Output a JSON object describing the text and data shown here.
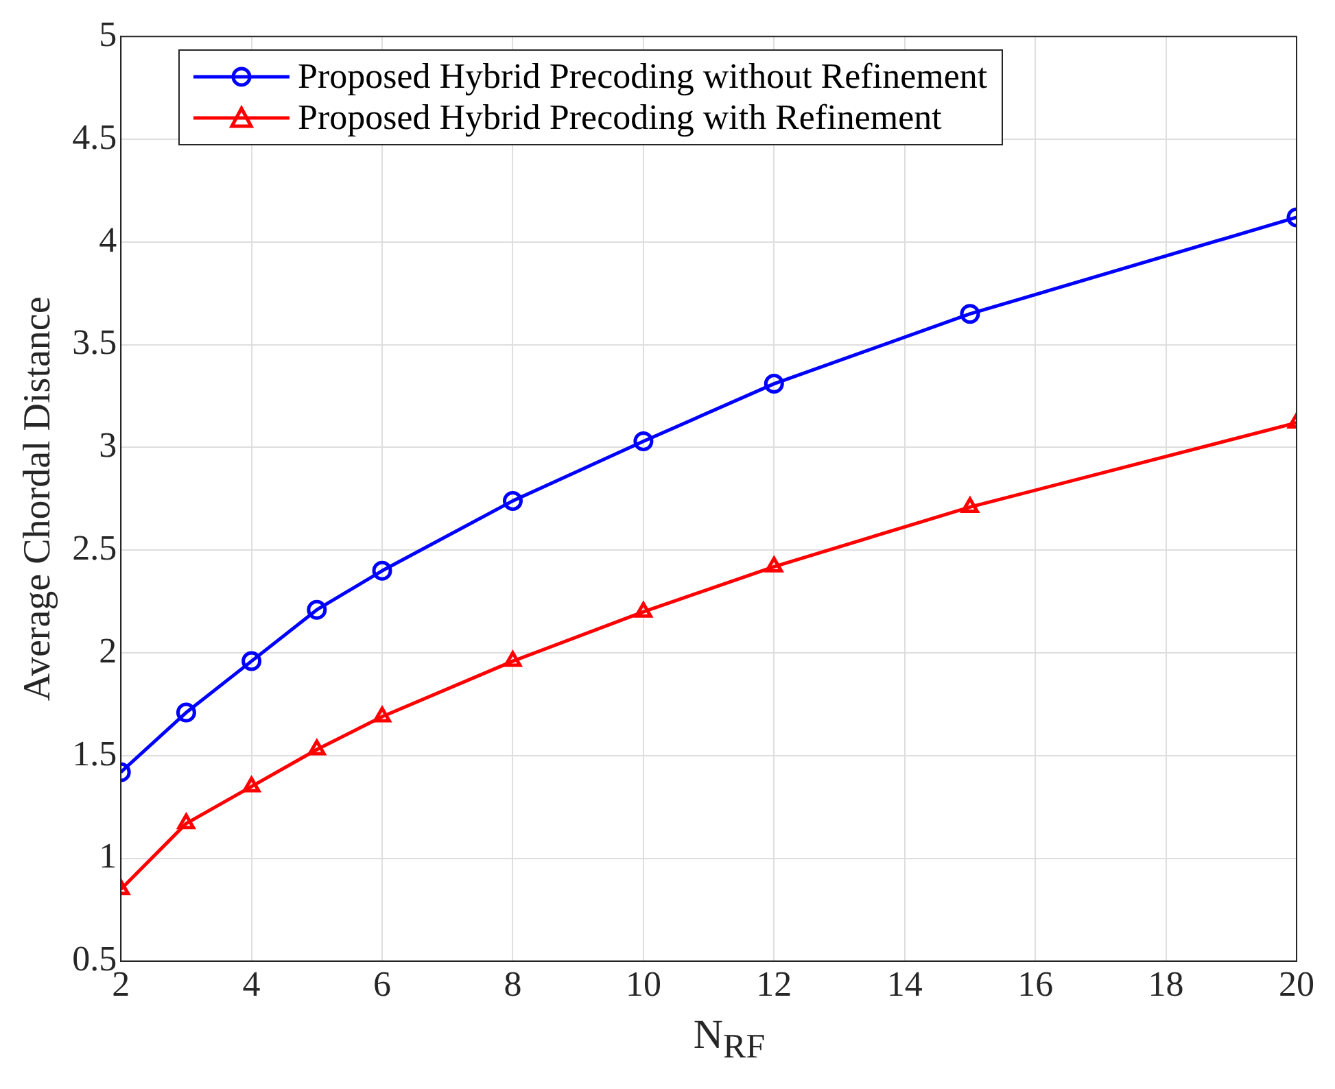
{
  "chart_data": {
    "type": "line",
    "xlabel": "N$_{RF}$",
    "ylabel": "Average Chordal Distance",
    "x": [
      2,
      3,
      4,
      5,
      6,
      8,
      10,
      12,
      15,
      20
    ],
    "series": [
      {
        "name": "Proposed Hybrid Precoding without Refinement",
        "color": "#0000ff",
        "marker": "circle",
        "values": [
          1.42,
          1.71,
          1.96,
          2.21,
          2.4,
          2.74,
          3.03,
          3.31,
          3.65,
          4.12
        ]
      },
      {
        "name": "Proposed Hybrid Precoding with Refinement",
        "color": "#ff0000",
        "marker": "triangle",
        "values": [
          0.85,
          1.17,
          1.35,
          1.53,
          1.69,
          1.96,
          2.2,
          2.42,
          2.71,
          3.12
        ]
      }
    ],
    "xlim": [
      2,
      20
    ],
    "xticks": [
      2,
      4,
      6,
      8,
      10,
      12,
      14,
      16,
      18,
      20
    ],
    "ylim": [
      0.5,
      5
    ],
    "yticks": [
      0.5,
      1,
      1.5,
      2,
      2.5,
      3,
      3.5,
      4,
      4.5,
      5
    ],
    "grid": true,
    "legend": "top left"
  }
}
